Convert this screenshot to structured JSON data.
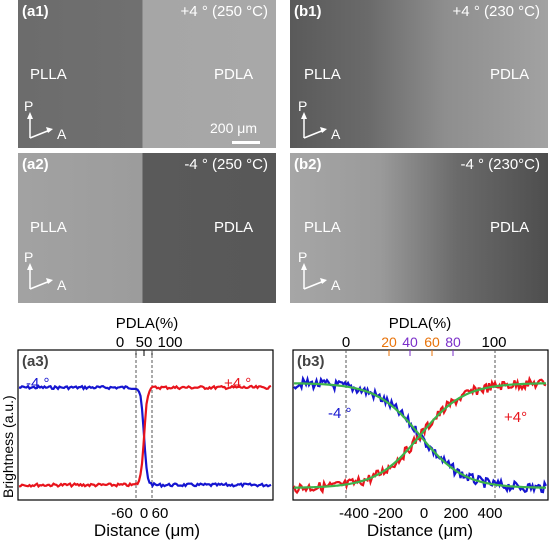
{
  "panels": {
    "a1": {
      "tag": "(a1)",
      "cond": "+4 ° (250 °C)",
      "left": "PLLA",
      "right": "PDLA",
      "scale": "200 μm",
      "pol": "P",
      "ana": "A"
    },
    "b1": {
      "tag": "(b1)",
      "cond": "+4 ° (230 °C)",
      "left": "PLLA",
      "right": "PDLA",
      "pol": "P",
      "ana": "A"
    },
    "a2": {
      "tag": "(a2)",
      "cond": "-4 ° (250 °C)",
      "left": "PLLA",
      "right": "PDLA",
      "pol": "P",
      "ana": "A"
    },
    "b2": {
      "tag": "(b2)",
      "cond": "-4 ° (230°C)",
      "left": "PLLA",
      "right": "PDLA",
      "pol": "P",
      "ana": "A"
    }
  },
  "colors": {
    "neg": "#1515d0",
    "pos": "#e8141c",
    "fit": "#3cb44b"
  },
  "chart_data": [
    {
      "type": "line",
      "tag": "(a3)",
      "ylabel": "Brightness (a.u.)",
      "xlabel": "Distance (μm)",
      "top_label": "PDLA(%)",
      "x_ticks": [
        "-60",
        "0",
        "60"
      ],
      "top_ticks": [
        "0",
        "50",
        "100"
      ],
      "series": [
        {
          "name": "-4 °",
          "start": 0.75,
          "end": 0.1
        },
        {
          "name": "+4 °",
          "start": 0.1,
          "end": 0.75
        }
      ]
    },
    {
      "type": "line",
      "tag": "(b3)",
      "xlabel": "Distance (μm)",
      "top_label": "PDLA(%)",
      "x_ticks": [
        "-400",
        "-200",
        "0",
        "200",
        "400"
      ],
      "top_ticks": [
        "0",
        "100"
      ],
      "top_colored_ticks": [
        {
          "label": "20",
          "color": "#e8730a"
        },
        {
          "label": "40",
          "color": "#7b2fc9"
        },
        {
          "label": "60",
          "color": "#e8730a"
        },
        {
          "label": "80",
          "color": "#7b2fc9"
        }
      ],
      "series": [
        {
          "name": "-4 °",
          "start": 0.78,
          "end": 0.08
        },
        {
          "name": "+4°",
          "start": 0.08,
          "end": 0.78
        }
      ]
    }
  ]
}
